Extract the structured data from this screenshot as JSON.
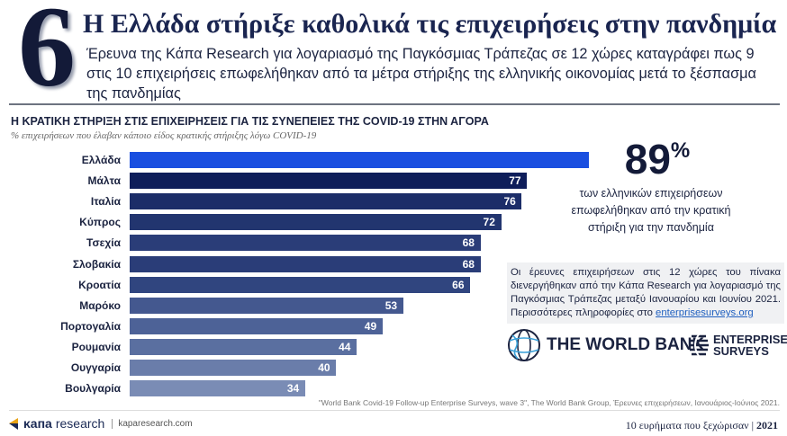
{
  "header": {
    "number": "6",
    "title": "Η Ελλάδα στήριξε καθολικά τις επιχειρήσεις στην πανδημία",
    "subtitle": "Έρευνα της Κάπα Research για λογαριασμό της Παγκόσμιας Τράπεζας σε 12 χώρες καταγράφει πως 9 στις 10 επιχειρήσεις επωφελήθηκαν από τα μέτρα στήριξης της ελληνικής οικονομίας μετά το ξέσπασμα της πανδημίας"
  },
  "chart_data": {
    "type": "bar",
    "orientation": "horizontal",
    "title": "Η ΚΡΑΤΙΚΗ ΣΤΗΡΙΞΗ ΣΤΙΣ ΕΠΙΧΕΙΡΗΣΕΙΣ ΓΙΑ ΤΙΣ ΣΥΝΕΠΕΙΕΣ ΤΗΣ COVID-19 ΣΤΗΝ ΑΓΟΡΑ",
    "subtitle": "% επιχειρήσεων που έλαβαν κάποιο είδος κρατικής στήριξης λόγω COVID-19",
    "categories": [
      "Ελλάδα",
      "Μάλτα",
      "Ιταλία",
      "Κύπρος",
      "Τσεχία",
      "Σλοβακία",
      "Κροατία",
      "Μαρόκο",
      "Πορτογαλία",
      "Ρουμανία",
      "Ουγγαρία",
      "Βουλγαρία"
    ],
    "values": [
      89,
      77,
      76,
      72,
      68,
      68,
      66,
      53,
      49,
      44,
      40,
      34
    ],
    "xlim": [
      0,
      100
    ],
    "grid": false,
    "highlight_color": "#1a4fe0",
    "colors": [
      "#1a4fe0",
      "#0f1e5a",
      "#1c2d68",
      "#22356f",
      "#2a3d78",
      "#2a3d78",
      "#30457f",
      "#44588f",
      "#4d6297",
      "#5a6fa0",
      "#6a7daa",
      "#7a8cb5"
    ]
  },
  "highlight": {
    "value": "89",
    "unit": "%",
    "text": "των ελληνικών επιχειρήσεων επωφελήθηκαν από την κρατική στήριξη για την πανδημία"
  },
  "note": {
    "text": "Οι έρευνες επιχειρήσεων στις 12 χώρες του πίνακα διενεργήθηκαν από την Κάπα Research για λογαριασμό της Παγκόσμιας Τράπεζας μεταξύ Ιανουαρίου και Ιουνίου 2021. Περισσότερες πληροφορίες στο ",
    "link": "enterprisesurveys.org"
  },
  "logos": {
    "world_bank": "THE WORLD BANK",
    "enterprise_1": "ENTERPRISE",
    "enterprise_2": "SURVEYS"
  },
  "source": "\"World Bank Covid-19 Follow-up Enterprise Surveys, wave 3\", The World Bank Group, Έρευνες επιχειρήσεων, Ιανουάριος-Ιούνιος 2021.",
  "footer": {
    "brand_kapa": "κапа",
    "brand_research": "research",
    "site": "kaparesearch.com",
    "series": "10 ευρήματα που ξεχώρισαν | ",
    "year": "2021"
  }
}
